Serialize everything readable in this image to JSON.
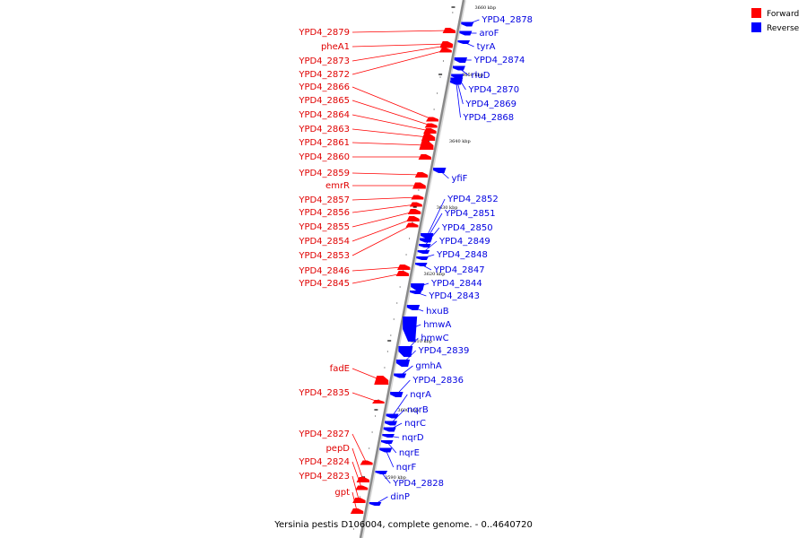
{
  "caption": "Yersinia pestis D106004, complete genome. - 0..4640720",
  "legend": [
    {
      "label": "Forward",
      "color": "#ff0000"
    },
    {
      "label": "Reverse",
      "color": "#0000ff"
    }
  ],
  "colors": {
    "forward": "#ff0000",
    "reverse": "#0000ff",
    "backbone": "#8a8a8a"
  },
  "ticks": [
    {
      "label": "3660 kbp"
    },
    {
      "label": "3650 kbp"
    },
    {
      "label": "3640 kbp"
    },
    {
      "label": "3630 kbp"
    },
    {
      "label": "3620 kbp"
    },
    {
      "label": "3610 kbp"
    },
    {
      "label": "3600 kbp"
    },
    {
      "label": "3590 kbp"
    }
  ],
  "forward_genes": [
    "YPD4_2879",
    "pheA1",
    "YPD4_2873",
    "YPD4_2872",
    "YPD4_2866",
    "YPD4_2865",
    "YPD4_2864",
    "YPD4_2863",
    "YPD4_2861",
    "YPD4_2860",
    "YPD4_2859",
    "emrR",
    "YPD4_2857",
    "YPD4_2856",
    "YPD4_2855",
    "YPD4_2854",
    "YPD4_2853",
    "YPD4_2846",
    "YPD4_2845",
    "fadE",
    "YPD4_2835",
    "YPD4_2827",
    "pepD",
    "YPD4_2824",
    "YPD4_2823",
    "gpt"
  ],
  "reverse_genes": [
    "YPD4_2878",
    "aroF",
    "tyrA",
    "YPD4_2874",
    "rluD",
    "YPD4_2870",
    "YPD4_2869",
    "YPD4_2868",
    "yfiF",
    "YPD4_2852",
    "YPD4_2851",
    "YPD4_2850",
    "YPD4_2849",
    "YPD4_2848",
    "YPD4_2847",
    "YPD4_2844",
    "YPD4_2843",
    "hxuB",
    "hmwA",
    "hmwC",
    "YPD4_2839",
    "gmhA",
    "YPD4_2836",
    "nqrA",
    "nqrB",
    "nqrC",
    "nqrD",
    "nqrE",
    "nqrF",
    "YPD4_2828",
    "dinP"
  ]
}
